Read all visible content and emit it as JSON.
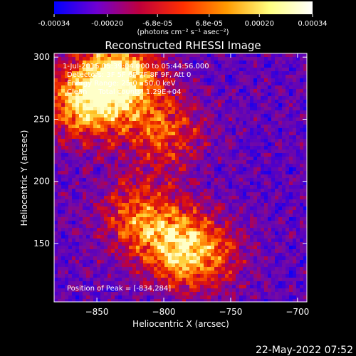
{
  "colorbar": {
    "tick_labels": [
      "-0.00034",
      "-0.00020",
      "-6.8e-05",
      "6.8e-05",
      "0.00020",
      "0.00034"
    ],
    "tick_values": [
      -0.00034,
      -0.0002,
      -6.8e-05,
      6.8e-05,
      0.0002,
      0.00034
    ],
    "range": [
      -0.00034,
      0.00034
    ],
    "unit_label": "(photons cm⁻² s⁻¹ asec⁻²)",
    "colors": [
      "#0000ff",
      "#7000d0",
      "#c0003a",
      "#ff3000",
      "#ff9a00",
      "#ffff80",
      "#ffffff"
    ]
  },
  "chart_data": {
    "type": "heatmap",
    "title": "Reconstructed RHESSI Image",
    "xlabel": "Heliocentric X (arcsec)",
    "ylabel": "Heliocentric Y (arcsec)",
    "xlim": [
      -882,
      -693
    ],
    "ylim": [
      103,
      303
    ],
    "x_ticks": [
      -850,
      -800,
      -750,
      -700
    ],
    "x_tick_labels": [
      "−850",
      "−800",
      "−750",
      "−700"
    ],
    "y_ticks": [
      150,
      200,
      250,
      300
    ],
    "y_tick_labels": [
      "150",
      "200",
      "250",
      "300"
    ],
    "annotations": [
      "1-Jul-2015 05:39:04.000 to 05:44:56.000",
      "Detectors: 3F 5F 6F 7F 8F 9F, Att 0",
      "Energy Range: 25.0 - 50.0 keV",
      "Clean     Total counts: 1.29E+04"
    ],
    "peak_label": "Position of Peak = [-834,284]",
    "peak": [
      -834,
      284
    ],
    "bright_regions": [
      {
        "x": -834,
        "y": 284,
        "rel": 1.0
      },
      {
        "x": -860,
        "y": 262,
        "rel": 0.75
      },
      {
        "x": -800,
        "y": 240,
        "rel": 0.55
      },
      {
        "x": -795,
        "y": 150,
        "rel": 0.6
      },
      {
        "x": -770,
        "y": 140,
        "rel": 0.55
      },
      {
        "x": -820,
        "y": 175,
        "rel": 0.5
      }
    ]
  },
  "footer": {
    "date": "22-May-2022 07:52"
  }
}
